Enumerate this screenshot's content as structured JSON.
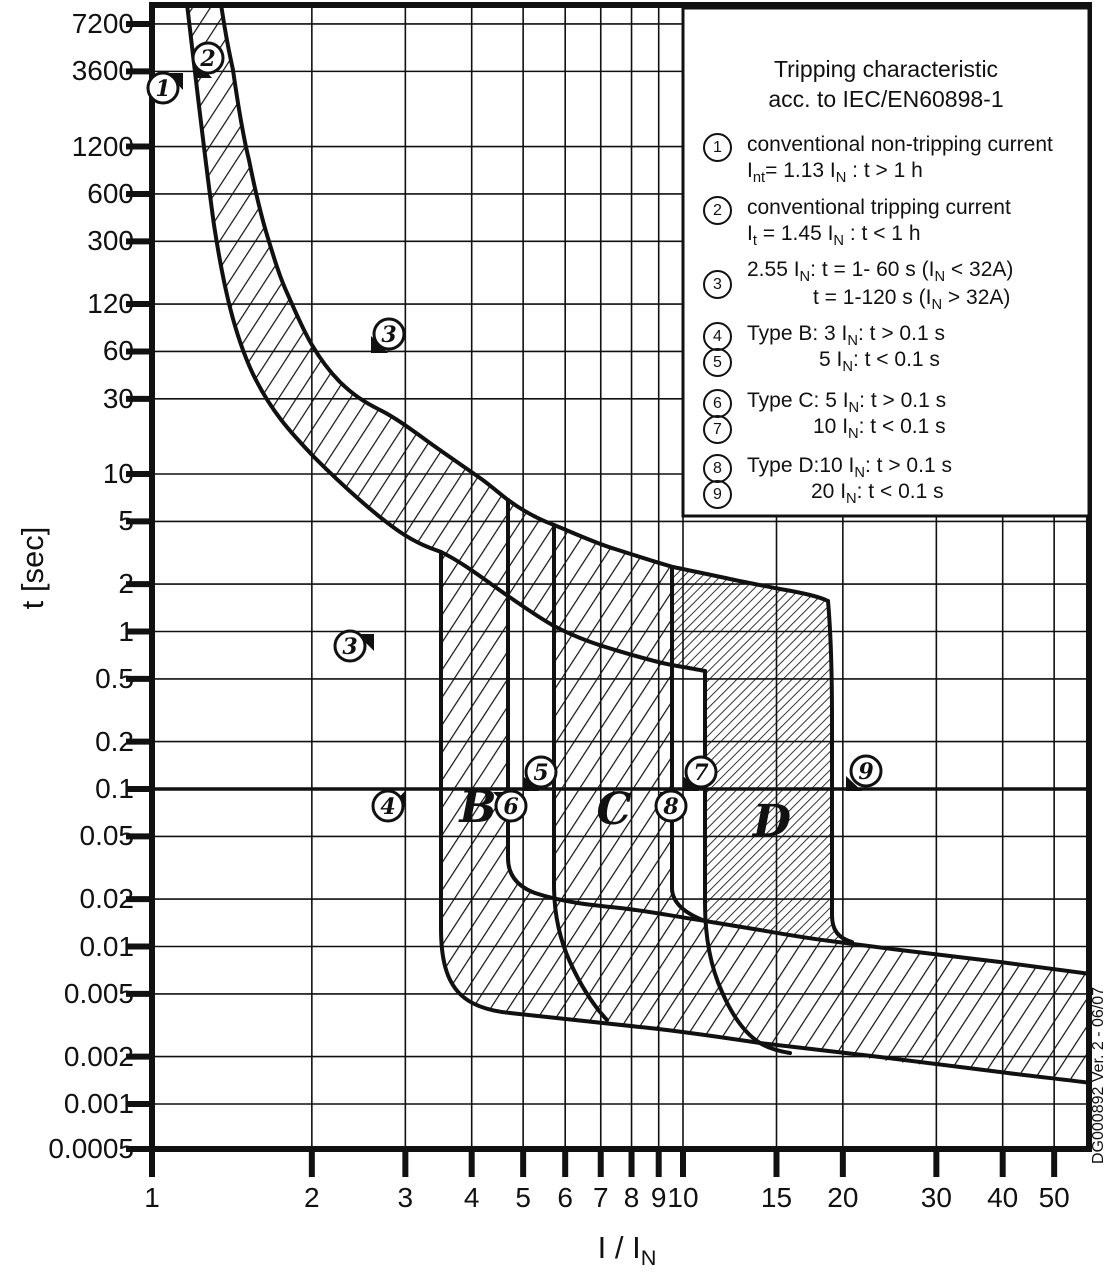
{
  "figure": {
    "y_axis": {
      "title": "t [sec]"
    },
    "x_axis": {
      "title": "I / I~N~"
    },
    "legend": {
      "title_line1": "Tripping characteristic",
      "title_line2": "acc. to IEC/EN60898-1",
      "items": [
        {
          "num": "1",
          "lines": [
            "conventional non-tripping current",
            "I~nt~= 1.13 I~N~ : t > 1 h"
          ]
        },
        {
          "num": "2",
          "lines": [
            "conventional tripping current",
            "I~t~ = 1.45 I~N~ : t < 1 h"
          ]
        },
        {
          "num": "3",
          "lines": [
            "2.55 I~N~: t = 1- 60 s (I~N~ < 32A)",
            "t = 1-120 s (I~N~ > 32A)"
          ]
        },
        {
          "num": "4",
          "lines": [
            "Type B: 3 I~N~: t > 0.1 s"
          ]
        },
        {
          "num": "5",
          "lines": [
            "5 I~N~: t < 0.1 s"
          ]
        },
        {
          "num": "6",
          "lines": [
            "Type C: 5 I~N~: t > 0.1 s"
          ]
        },
        {
          "num": "7",
          "lines": [
            "10 I~N~: t < 0.1 s"
          ]
        },
        {
          "num": "8",
          "lines": [
            "Type D:10 I~N~: t > 0.1 s"
          ]
        },
        {
          "num": "9",
          "lines": [
            "20 I~N~: t < 0.1 s"
          ]
        }
      ]
    },
    "region_labels": [
      "B",
      "C",
      "D"
    ],
    "plot_markers": [
      {
        "label": "1"
      },
      {
        "label": "2"
      },
      {
        "label": "3"
      },
      {
        "label": "3"
      },
      {
        "label": "4"
      },
      {
        "label": "5"
      },
      {
        "label": "6"
      },
      {
        "label": "7"
      },
      {
        "label": "8"
      },
      {
        "label": "9"
      }
    ],
    "doc_code": "DG000892 Ver. 2 - 06/07",
    "colors": {
      "line": "#111111",
      "background": "#ffffff"
    }
  },
  "chart_data": {
    "type": "line",
    "title": "Tripping characteristic acc. to IEC/EN60898-1",
    "xlabel": "I / IN",
    "ylabel": "t [sec]",
    "grid": true,
    "x_axis": {
      "scale": "log",
      "min": 1,
      "max": 58,
      "ticks": [
        [
          "1",
          1
        ],
        [
          "2",
          2
        ],
        [
          "3",
          3
        ],
        [
          "4",
          4
        ],
        [
          "5",
          5
        ],
        [
          "6",
          6
        ],
        [
          "7",
          7
        ],
        [
          "8",
          8
        ],
        [
          "9",
          9
        ],
        [
          "10",
          10
        ],
        [
          "15",
          15
        ],
        [
          "20",
          20
        ],
        [
          "30",
          30
        ],
        [
          "40",
          40
        ],
        [
          "50",
          50
        ]
      ]
    },
    "y_axis": {
      "scale": "log",
      "min": 0.0005,
      "max": 7200,
      "ticks": [
        [
          "7200",
          7200
        ],
        [
          "3600",
          3600
        ],
        [
          "1200",
          1200
        ],
        [
          "600",
          600
        ],
        [
          "300",
          300
        ],
        [
          "120",
          120
        ],
        [
          "60",
          60
        ],
        [
          "30",
          30
        ],
        [
          "10",
          10
        ],
        [
          "5",
          5
        ],
        [
          "2",
          2
        ],
        [
          "1",
          1
        ],
        [
          "0.5",
          0.5
        ],
        [
          "0.2",
          0.2
        ],
        [
          "0.1",
          0.1
        ],
        [
          "0.05",
          0.05
        ],
        [
          "0.02",
          0.02
        ],
        [
          "0.01",
          0.01
        ],
        [
          "0.005",
          0.005
        ],
        [
          "0.002",
          0.002
        ],
        [
          "0.001",
          0.001
        ],
        [
          "0.0005",
          0.0005
        ]
      ]
    },
    "emphasized_gridline_t": 0.1,
    "series": [
      {
        "name": "thermal band lower boundary (non-tripping current 1.13 IN)",
        "points": [
          [
            1.16,
            9300
          ],
          [
            1.23,
            2050
          ],
          [
            1.31,
            380
          ],
          [
            1.41,
            113
          ],
          [
            1.54,
            44
          ],
          [
            1.74,
            23
          ],
          [
            2.03,
            12.7
          ],
          [
            2.42,
            6.9
          ],
          [
            2.93,
            4.3
          ],
          [
            3.5,
            3.2
          ],
          [
            4.68,
            1.68
          ],
          [
            5.7,
            1.08
          ],
          [
            7.34,
            0.77
          ],
          [
            9.52,
            0.61
          ],
          [
            10.96,
            0.56
          ]
        ]
      },
      {
        "name": "thermal band upper boundary (tripping current 1.45 IN)",
        "points": [
          [
            1.35,
            9300
          ],
          [
            1.42,
            3700
          ],
          [
            1.52,
            990
          ],
          [
            1.65,
            330
          ],
          [
            1.8,
            137
          ],
          [
            2.0,
            66
          ],
          [
            2.26,
            38
          ],
          [
            2.69,
            25.5
          ],
          [
            3.34,
            15.7
          ],
          [
            4.15,
            9.4
          ],
          [
            4.68,
            6.8
          ],
          [
            5.7,
            4.74
          ],
          [
            7.45,
            3.34
          ],
          [
            9.57,
            2.57
          ],
          [
            12.26,
            2.15
          ],
          [
            15.23,
            1.86
          ],
          [
            18.76,
            1.56
          ]
        ]
      },
      {
        "name": "type B magnetic band lower limit",
        "points": [
          [
            3.5,
            3.2
          ],
          [
            3.5,
            0.0135
          ],
          [
            3.6,
            0.0072
          ],
          [
            3.9,
            0.0047
          ],
          [
            4.7,
            0.0038
          ],
          [
            8.3,
            0.0031
          ],
          [
            18.9,
            0.0021
          ],
          [
            40,
            0.0015
          ],
          [
            58,
            0.00135
          ]
        ]
      },
      {
        "name": "type B magnetic band upper limit",
        "points": [
          [
            4.68,
            6.8
          ],
          [
            4.68,
            0.036
          ],
          [
            5.3,
            0.022
          ],
          [
            7.6,
            0.0175
          ],
          [
            11,
            0.0146
          ],
          [
            18.9,
            0.0109
          ],
          [
            39.5,
            0.008
          ],
          [
            58,
            0.0067
          ]
        ]
      },
      {
        "name": "type C magnetic band lower limit",
        "points": [
          [
            5.7,
            4.74
          ],
          [
            5.7,
            0.0245
          ],
          [
            6.2,
            0.0079
          ],
          [
            7.2,
            0.0034
          ]
        ]
      },
      {
        "name": "type C magnetic band upper limit",
        "points": [
          [
            9.5,
            2.57
          ],
          [
            9.5,
            0.0235
          ],
          [
            11,
            0.0146
          ]
        ]
      },
      {
        "name": "type D magnetic band lower limit",
        "points": [
          [
            9.52,
            0.61
          ],
          [
            10.96,
            0.56
          ],
          [
            11,
            0.019
          ],
          [
            12,
            0.005
          ],
          [
            14,
            0.0024
          ],
          [
            16,
            0.0021
          ]
        ]
      },
      {
        "name": "type D magnetic band upper limit",
        "points": [
          [
            18.76,
            1.56
          ],
          [
            19.1,
            0.0157
          ],
          [
            20.8,
            0.0107
          ]
        ]
      }
    ],
    "annotations": [
      {
        "marker": "1",
        "x": 1.05,
        "y": 2800
      },
      {
        "marker": "2",
        "x": 1.28,
        "y": 4400
      },
      {
        "marker": "3",
        "x": 2.8,
        "y": 77
      },
      {
        "marker": "3",
        "x": 2.36,
        "y": 0.81
      },
      {
        "marker": "4",
        "x": 2.78,
        "y": 0.078
      },
      {
        "marker": "5",
        "x": 5.4,
        "y": 0.128
      },
      {
        "marker": "6",
        "x": 4.75,
        "y": 0.078
      },
      {
        "marker": "7",
        "x": 10.8,
        "y": 0.128
      },
      {
        "marker": "8",
        "x": 9.5,
        "y": 0.078
      },
      {
        "marker": "9",
        "x": 22.2,
        "y": 0.13
      },
      {
        "label": "B",
        "x": 4.1,
        "y": 0.075
      },
      {
        "label": "C",
        "x": 7.4,
        "y": 0.072
      },
      {
        "label": "D",
        "x": 14.7,
        "y": 0.062
      }
    ]
  }
}
